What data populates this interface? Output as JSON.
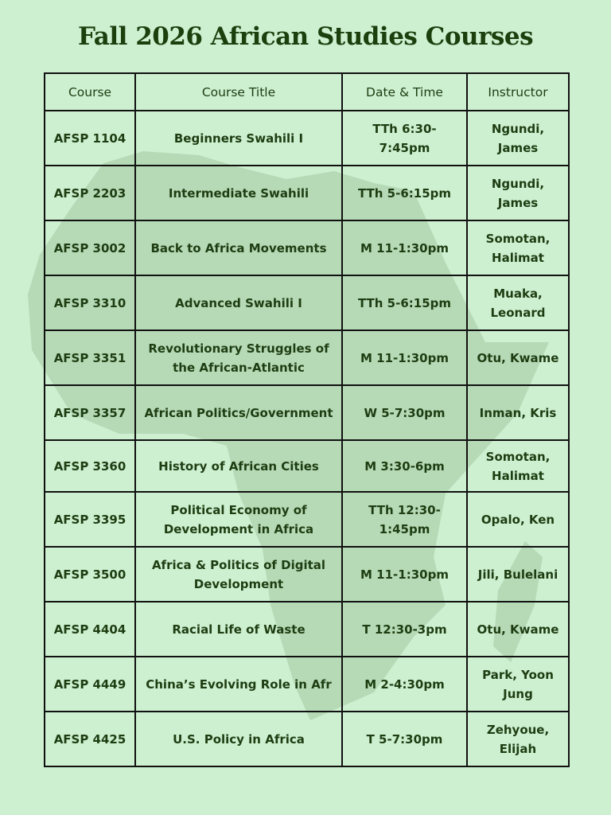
{
  "title": "Fall 2026 African Studies Courses",
  "colors": {
    "background": "#cdf0d0",
    "map": "#b6dab6",
    "text": "#1e3d12"
  },
  "table": {
    "headers": [
      "Course",
      "Course Title",
      "Date & Time",
      "Instructor"
    ],
    "rows": [
      [
        "AFSP 1104",
        "Beginners Swahili I",
        "TTh 6:30-7:45pm",
        "Ngundi, James"
      ],
      [
        "AFSP 2203",
        "Intermediate Swahili",
        "TTh 5-6:15pm",
        "Ngundi, James"
      ],
      [
        "AFSP 3002",
        "Back to Africa Movements",
        "M 11-1:30pm",
        "Somotan, Halimat"
      ],
      [
        "AFSP 3310",
        "Advanced Swahili I",
        "TTh 5-6:15pm",
        "Muaka, Leonard"
      ],
      [
        "AFSP 3351",
        "Revolutionary Struggles of the African-Atlantic",
        "M 11-1:30pm",
        "Otu, Kwame"
      ],
      [
        "AFSP 3357",
        "African Politics/Government",
        "W 5-7:30pm",
        "Inman, Kris"
      ],
      [
        "AFSP 3360",
        "History of African Cities",
        "M 3:30-6pm",
        "Somotan, Halimat"
      ],
      [
        "AFSP 3395",
        "Political Economy of Development in Africa",
        "TTh 12:30-1:45pm",
        "Opalo, Ken"
      ],
      [
        "AFSP 3500",
        "Africa & Politics of Digital Development",
        "M 11-1:30pm",
        "Jili, Bulelani"
      ],
      [
        "AFSP 4404",
        "Racial Life of Waste",
        "T 12:30-3pm",
        "Otu, Kwame"
      ],
      [
        "AFSP 4449",
        "China’s Evolving Role in Afr",
        "M 2-4:30pm",
        "Park, Yoon Jung"
      ],
      [
        "AFSP 4425",
        "U.S. Policy in Africa",
        "T 5-7:30pm",
        "Zehyoue, Elijah"
      ]
    ]
  }
}
